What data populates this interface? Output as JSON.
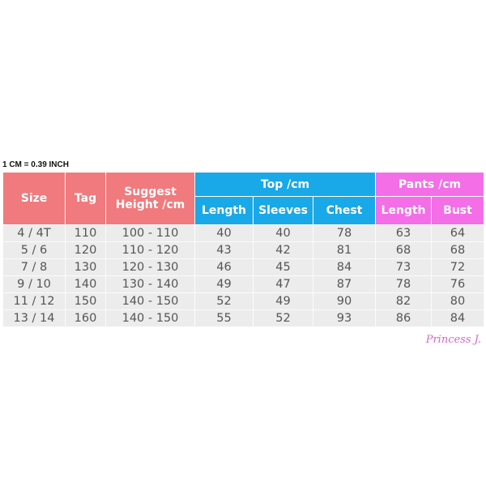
{
  "note": "1 CM = 0.39 INCH",
  "headers": {
    "size": "Size",
    "tag": "Tag",
    "height": "Suggest Height /cm",
    "top_group": "Top /cm",
    "pants_group": "Pants /cm",
    "top_length": "Length",
    "sleeves": "Sleeves",
    "chest": "Chest",
    "pants_length": "Length",
    "bust": "Bust"
  },
  "colors": {
    "size_header": "#f07a7d",
    "top_header": "#19a8e8",
    "pants_header": "#f36ee7"
  },
  "rows": [
    [
      "4 / 4T",
      "110",
      "100 - 110",
      "40",
      "40",
      "78",
      "63",
      "64"
    ],
    [
      "5 / 6",
      "120",
      "110 - 120",
      "43",
      "42",
      "81",
      "68",
      "68"
    ],
    [
      "7 / 8",
      "130",
      "120 - 130",
      "46",
      "45",
      "84",
      "73",
      "72"
    ],
    [
      "9 / 10",
      "140",
      "130 - 140",
      "49",
      "47",
      "87",
      "78",
      "76"
    ],
    [
      "11 / 12",
      "150",
      "140 - 150",
      "52",
      "49",
      "90",
      "82",
      "80"
    ],
    [
      "13 / 14",
      "160",
      "140 - 150",
      "55",
      "52",
      "93",
      "86",
      "84"
    ]
  ],
  "watermark": "Princess J."
}
